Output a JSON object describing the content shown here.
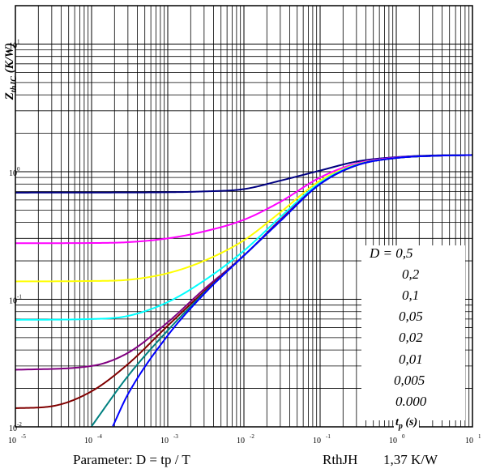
{
  "chart_data": {
    "type": "line",
    "x_scale": "log",
    "y_scale": "log",
    "xlim": [
      1e-05,
      10
    ],
    "ylim": [
      0.01,
      20
    ],
    "grid": true,
    "x_tick_labels": [
      {
        "base": "10",
        "exp": "-5"
      },
      {
        "base": "10",
        "exp": "-4"
      },
      {
        "base": "10",
        "exp": "-3"
      },
      {
        "base": "10",
        "exp": "-2"
      },
      {
        "base": "10",
        "exp": "-1"
      },
      {
        "base": "10",
        "exp": "0"
      },
      {
        "base": "10",
        "exp": "1"
      }
    ],
    "y_tick_labels": [
      {
        "base": "10",
        "exp": "-2"
      },
      {
        "base": "10",
        "exp": "-1"
      },
      {
        "base": "10",
        "exp": "0"
      },
      {
        "base": "10",
        "exp": "1"
      }
    ],
    "ylabel": {
      "main": "Z",
      "sub": "thJC",
      "rest": " (K/W)"
    },
    "xlabel": {
      "main": "t",
      "sub": "p",
      "rest": " (s)"
    },
    "legend_items": [
      "D = 0,5",
      "0,2",
      "0,1",
      "0,05",
      "0,02",
      "0,01",
      "0,005",
      "0.000"
    ],
    "series": [
      {
        "D": 0.5,
        "color": "#000080",
        "x": [
          1e-05,
          0.0001,
          0.001,
          0.003,
          0.01,
          0.03,
          0.1,
          0.3,
          1,
          3,
          10
        ],
        "y": [
          0.685,
          0.686,
          0.69,
          0.7,
          0.73,
          0.85,
          1.02,
          1.2,
          1.3,
          1.34,
          1.35
        ]
      },
      {
        "D": 0.2,
        "color": "#ff00ff",
        "x": [
          1e-05,
          0.0001,
          0.0003,
          0.001,
          0.003,
          0.01,
          0.03,
          0.1,
          0.3,
          1,
          3,
          10
        ],
        "y": [
          0.275,
          0.276,
          0.28,
          0.3,
          0.34,
          0.42,
          0.58,
          0.9,
          1.16,
          1.29,
          1.33,
          1.35
        ]
      },
      {
        "D": 0.1,
        "color": "#ffff00",
        "x": [
          1e-05,
          0.0001,
          0.0003,
          0.001,
          0.003,
          0.01,
          0.03,
          0.1,
          0.3,
          1,
          3,
          10
        ],
        "y": [
          0.138,
          0.139,
          0.142,
          0.16,
          0.2,
          0.29,
          0.48,
          0.85,
          1.14,
          1.28,
          1.33,
          1.35
        ]
      },
      {
        "D": 0.05,
        "color": "#00ffff",
        "x": [
          1e-05,
          0.0001,
          0.0003,
          0.001,
          0.003,
          0.01,
          0.03,
          0.1,
          0.3,
          1,
          3,
          10
        ],
        "y": [
          0.069,
          0.07,
          0.074,
          0.095,
          0.14,
          0.24,
          0.44,
          0.82,
          1.13,
          1.28,
          1.33,
          1.35
        ]
      },
      {
        "D": 0.02,
        "color": "#800080",
        "x": [
          1e-05,
          0.0001,
          0.0003,
          0.001,
          0.003,
          0.01,
          0.03,
          0.1,
          0.3,
          1,
          3,
          10
        ],
        "y": [
          0.028,
          0.03,
          0.038,
          0.066,
          0.12,
          0.22,
          0.42,
          0.8,
          1.12,
          1.28,
          1.33,
          1.35
        ]
      },
      {
        "D": 0.01,
        "color": "#800000",
        "x": [
          1e-05,
          3e-05,
          0.0001,
          0.0003,
          0.001,
          0.003,
          0.01,
          0.03,
          0.1,
          0.3,
          1,
          3,
          10
        ],
        "y": [
          0.014,
          0.0145,
          0.019,
          0.031,
          0.062,
          0.115,
          0.22,
          0.41,
          0.8,
          1.12,
          1.28,
          1.33,
          1.35
        ]
      },
      {
        "D": 0.005,
        "color": "#008080",
        "x": [
          0.0001,
          0.0003,
          0.001,
          0.003,
          0.01,
          0.03,
          0.1,
          0.3,
          1,
          3,
          10
        ],
        "y": [
          0.0101,
          0.025,
          0.057,
          0.112,
          0.22,
          0.41,
          0.8,
          1.12,
          1.28,
          1.33,
          1.35
        ]
      },
      {
        "D": 0,
        "color": "#0000ff",
        "x": [
          0.00019,
          0.0003,
          0.001,
          0.003,
          0.01,
          0.03,
          0.1,
          0.3,
          1,
          3,
          10
        ],
        "y": [
          0.0101,
          0.018,
          0.052,
          0.11,
          0.22,
          0.41,
          0.8,
          1.12,
          1.28,
          1.33,
          1.35
        ]
      }
    ]
  },
  "footer": {
    "parameter": "Parameter: D = tp / T",
    "rth": "RthJH",
    "rth_value": "1,37  K/W"
  }
}
